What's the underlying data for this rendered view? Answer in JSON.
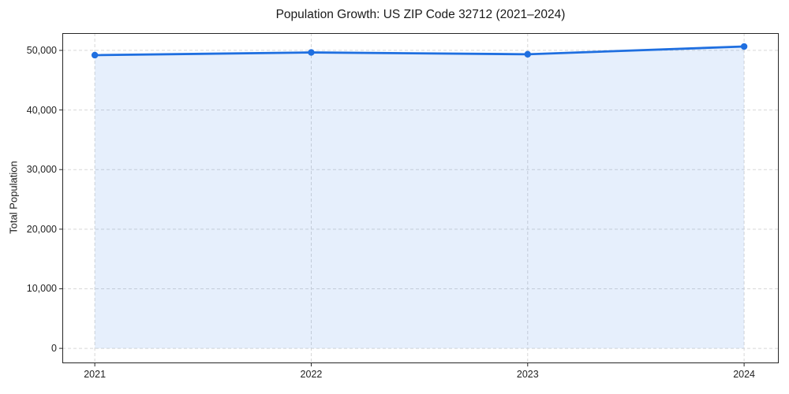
{
  "chart_data": {
    "type": "area",
    "title": "Population Growth: US ZIP Code 32712 (2021–2024)",
    "xlabel": "",
    "ylabel": "Total Population",
    "x": [
      2021,
      2022,
      2023,
      2024
    ],
    "x_tick_labels": [
      "2021",
      "2022",
      "2023",
      "2024"
    ],
    "series": [
      {
        "name": "Total Population",
        "values": [
          49200,
          49650,
          49350,
          50650
        ]
      }
    ],
    "y_ticks": [
      0,
      10000,
      20000,
      30000,
      40000,
      50000
    ],
    "y_tick_labels": [
      "0",
      "10,000",
      "20,000",
      "30,000",
      "40,000",
      "50,000"
    ],
    "xlim": [
      2020.85,
      2024.16
    ],
    "ylim": [
      -2500,
      52900
    ],
    "grid": true,
    "grid_style": "dashed",
    "legend": "none",
    "marker": "circle",
    "colors": {
      "line": "#1f6fe0",
      "marker": "#1f6fe0",
      "fill": "#1f6fe0",
      "fill_opacity": "0.11",
      "grid": "#d7d7d7",
      "spine": "#262626",
      "text": "#1a1a1a",
      "background": "#ffffff"
    }
  }
}
